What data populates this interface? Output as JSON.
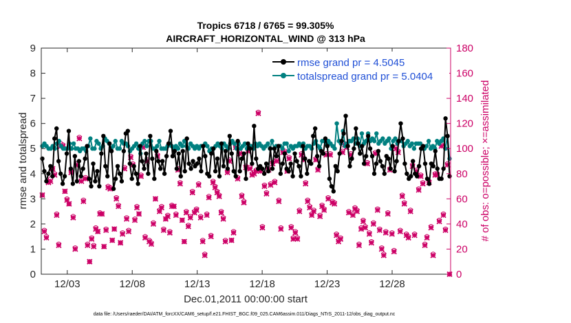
{
  "chart_data": {
    "type": "line",
    "title_line1": "Tropics 6718 / 6765 = 99.305%",
    "title_line2": "AIRCRAFT_HORIZONTAL_WIND @ 313 hPa",
    "xlabel": "Dec.01,2011 00:00:00 start",
    "ylabel": "rmse and totalspread",
    "ylabel_right": "# of obs: o=possible; ×=assimilated",
    "xlim": [
      1,
      32.5
    ],
    "ylim": [
      0,
      9
    ],
    "ylim_right": [
      0,
      180
    ],
    "x_ticks": [
      3,
      8,
      13,
      18,
      23,
      28
    ],
    "x_tick_labels": [
      "12/03",
      "12/08",
      "12/13",
      "12/18",
      "12/23",
      "12/28"
    ],
    "y_ticks": [
      0,
      1,
      2,
      3,
      4,
      5,
      6,
      7,
      8,
      9
    ],
    "y_tick_labels": [
      "0",
      "1",
      "2",
      "3",
      "4",
      "5",
      "6",
      "7",
      "8",
      "9"
    ],
    "y_ticks_right": [
      0,
      20,
      40,
      60,
      80,
      100,
      120,
      140,
      160,
      180
    ],
    "y_tick_labels_right": [
      "0",
      "20",
      "40",
      "60",
      "80",
      "100",
      "120",
      "140",
      "160",
      "180"
    ],
    "footnote": "data file: /Users/raeder/DAI/ATM_forcXX/CAM6_setup/f.e21.FHIST_BGC.f09_025.CAM6assim.011/Diags_NTrS_2011-12/obs_diag_output.nc",
    "series": [
      {
        "name": "rmse grand pr = 4.5045",
        "color": "#000000",
        "axis": "left",
        "values": [
          4.6,
          4.1,
          3.7,
          4.0,
          4.3,
          3.9,
          5.4,
          5.8,
          4.5,
          4.0,
          3.6,
          3.9,
          4.8,
          5.7,
          4.2,
          3.6,
          4.7,
          3.7,
          4.5,
          3.9,
          4.2,
          4.6,
          5.1,
          3.8,
          3.5,
          4.4,
          3.7,
          4.1,
          3.5,
          4.8,
          5.5,
          4.3,
          3.9,
          5.2,
          4.9,
          3.4,
          3.8,
          4.3,
          4.0,
          3.7,
          4.9,
          5.6,
          5.7,
          4.4,
          3.8,
          4.3,
          4.0,
          3.6,
          5.1,
          4.5,
          4.2,
          4.8,
          4.0,
          5.5,
          4.6,
          3.8,
          4.9,
          4.5,
          4.2,
          4.5,
          4.0,
          4.7,
          5.2,
          5.7,
          4.7,
          4.9,
          4.2,
          4.8,
          3.9,
          4.9,
          4.1,
          5.4,
          4.4,
          4.2,
          4.5,
          4.3,
          4.4,
          4.6,
          4.1,
          5.1,
          4.7,
          4.0,
          3.9,
          4.8,
          5.0,
          4.1,
          4.6,
          3.9,
          5.2,
          4.3,
          4.9,
          4.2,
          5.5,
          4.8,
          4.1,
          3.9,
          5.3,
          4.1,
          4.6,
          4.8,
          3.8,
          5.2,
          5.0,
          4.4,
          5.9,
          4.6,
          4.2,
          4.3,
          4.2,
          4.0,
          4.4,
          4.1,
          5.0,
          4.2,
          5.0,
          4.7,
          5.1,
          4.0,
          4.4,
          4.8,
          4.2,
          4.1,
          4.4,
          3.9,
          4.8,
          4.5,
          4.3,
          3.9,
          5.1,
          4.6,
          4.0,
          4.5,
          4.4,
          5.5,
          5.8,
          4.7,
          4.3,
          4.9,
          4.8,
          5.4,
          5.1,
          3.8,
          3.5,
          3.3,
          4.3,
          4.1,
          4.8,
          5.3,
          5.6,
          6.3,
          5.1,
          4.3,
          4.6,
          5.0,
          5.8,
          5.2,
          4.8,
          5.1,
          4.4,
          4.7,
          5.5,
          5.0,
          4.7,
          4.0,
          4.4,
          4.9,
          4.5,
          4.3,
          4.0,
          4.7,
          4.6,
          4.2,
          5.1,
          4.1,
          4.5,
          5.3,
          6.0,
          5.4,
          4.4,
          4.0,
          3.8,
          3.9,
          4.5,
          4.0,
          3.9,
          4.3,
          5.0,
          5.1,
          4.4,
          3.8,
          3.6,
          4.4,
          4.3,
          4.9,
          4.2,
          3.8,
          3.8,
          4.2,
          6.2,
          5.5,
          3.9
        ]
      },
      {
        "name": "totalspread grand pr = 5.0404",
        "color": "#008080",
        "axis": "left",
        "values": [
          5.1,
          5.2,
          5.1,
          5.0,
          5.0,
          5.1,
          5.0,
          5.2,
          5.3,
          5.1,
          5.0,
          5.0,
          5.0,
          5.2,
          5.0,
          5.2,
          5.0,
          5.0,
          4.9,
          5.0,
          5.0,
          4.9,
          5.1,
          5.4,
          5.0,
          5.0,
          5.3,
          5.2,
          5.0,
          5.1,
          5.4,
          5.3,
          5.2,
          5.0,
          5.1,
          5.3,
          5.0,
          5.0,
          5.3,
          5.2,
          5.2,
          5.1,
          4.9,
          5.0,
          5.1,
          5.2,
          5.0,
          4.8,
          5.2,
          5.3,
          5.1,
          5.3,
          5.3,
          5.0,
          5.0,
          5.1,
          5.3,
          5.0,
          5.0,
          5.0,
          5.1,
          5.2,
          5.1,
          5.0,
          5.1,
          5.0,
          5.2,
          5.1,
          5.3,
          5.1,
          5.0,
          5.2,
          5.1,
          5.0,
          5.1,
          5.0,
          5.1,
          5.1,
          5.2,
          5.1,
          4.9,
          5.0,
          5.0,
          5.1,
          5.2,
          5.1,
          5.0,
          5.2,
          5.1,
          5.0,
          5.2,
          5.3,
          5.2,
          5.0,
          5.2,
          5.0,
          5.1,
          5.2,
          5.0,
          5.1,
          5.1,
          5.0,
          5.2,
          5.1,
          5.2,
          5.1,
          5.0,
          5.1,
          5.2,
          5.0,
          5.3,
          5.0,
          5.1,
          5.1,
          5.1,
          5.0,
          5.2,
          5.2,
          4.9,
          5.1,
          5.0,
          5.1,
          5.1,
          5.2,
          5.1,
          5.2,
          5.0,
          5.1,
          5.1,
          5.0,
          5.2,
          5.3,
          5.1,
          5.0,
          5.3,
          5.3,
          5.2,
          5.3,
          5.2,
          5.1,
          5.0,
          6.0,
          5.3,
          5.2,
          5.7,
          5.1,
          5.2,
          5.3,
          5.3,
          5.4,
          5.2,
          5.4,
          5.1,
          5.6,
          5.2,
          5.3,
          5.6,
          5.3,
          5.4,
          5.3,
          5.6,
          5.2,
          5.3,
          5.4,
          5.2,
          5.3,
          5.4,
          5.0,
          5.3,
          5.4,
          5.2,
          5.3,
          5.3,
          5.1,
          5.2,
          5.3,
          5.1,
          5.2,
          5.0,
          5.2,
          5.2,
          5.2,
          5.0,
          5.0,
          5.1,
          5.3,
          5.0,
          5.1,
          5.0,
          5.3,
          5.2,
          5.3,
          5.4,
          5.0,
          5.5,
          4.6
        ]
      },
      {
        "name": "obs possible",
        "color": "#cc0066",
        "axis": "right",
        "values": [
          63,
          35,
          30,
          74,
          76,
          84,
          80,
          48,
          24,
          104,
          103,
          66,
          60,
          56,
          82,
          46,
          21,
          88,
          109,
          75,
          59,
          77,
          24,
          10,
          29,
          23,
          37,
          34,
          49,
          48,
          22,
          36,
          70,
          69,
          27,
          36,
          61,
          55,
          25,
          33,
          85,
          45,
          35,
          94,
          88,
          44,
          54,
          48,
          79,
          102,
          30,
          91,
          27,
          25,
          41,
          60,
          95,
          51,
          54,
          36,
          44,
          47,
          34,
          55,
          54,
          48,
          84,
          73,
          43,
          26,
          50,
          39,
          46,
          66,
          50,
          52,
          72,
          46,
          27,
          16,
          48,
          62,
          31,
          74,
          70,
          66,
          63,
          50,
          45,
          27,
          82,
          91,
          27,
          34,
          102,
          77,
          97,
          63,
          58,
          86,
          99,
          85,
          80,
          81,
          83,
          129,
          83,
          38,
          71,
          65,
          84,
          72,
          89,
          74,
          91,
          59,
          37,
          98,
          98,
          83,
          93,
          38,
          29,
          34,
          29,
          51,
          96,
          92,
          73,
          59,
          54,
          48,
          51,
          92,
          84,
          47,
          55,
          52,
          96,
          61,
          96,
          58,
          57,
          32,
          27,
          29,
          98,
          104,
          102,
          50,
          96,
          48,
          53,
          51,
          24,
          37,
          43,
          38,
          89,
          33,
          26,
          41,
          97,
          52,
          36,
          21,
          16,
          34,
          49,
          84,
          33,
          19,
          101,
          98,
          35,
          63,
          57,
          32,
          30,
          51,
          87,
          32,
          83,
          68,
          79,
          73,
          24,
          30,
          74,
          38,
          16,
          80,
          80,
          43,
          103,
          48,
          36,
          88,
          0
        ]
      },
      {
        "name": "obs assimilated",
        "color": "#cc0066",
        "axis": "right",
        "values": [
          63,
          34,
          29,
          73,
          74,
          84,
          79,
          47,
          23,
          102,
          102,
          66,
          59,
          56,
          81,
          45,
          20,
          87,
          108,
          74,
          58,
          76,
          23,
          10,
          28,
          22,
          36,
          34,
          48,
          48,
          22,
          35,
          69,
          68,
          27,
          36,
          60,
          54,
          25,
          32,
          84,
          44,
          34,
          93,
          87,
          43,
          53,
          48,
          78,
          101,
          29,
          90,
          26,
          24,
          40,
          60,
          94,
          50,
          53,
          35,
          44,
          46,
          33,
          54,
          54,
          47,
          83,
          72,
          43,
          26,
          49,
          38,
          45,
          65,
          49,
          51,
          71,
          45,
          26,
          15,
          47,
          61,
          30,
          73,
          69,
          65,
          62,
          49,
          44,
          26,
          81,
          90,
          27,
          33,
          101,
          76,
          96,
          62,
          57,
          85,
          98,
          84,
          79,
          80,
          82,
          128,
          82,
          37,
          70,
          64,
          83,
          71,
          88,
          73,
          90,
          58,
          36,
          97,
          97,
          82,
          92,
          37,
          28,
          33,
          28,
          50,
          95,
          91,
          72,
          58,
          53,
          47,
          50,
          91,
          83,
          46,
          54,
          51,
          95,
          60,
          95,
          57,
          56,
          31,
          26,
          28,
          97,
          103,
          101,
          49,
          95,
          47,
          52,
          50,
          23,
          36,
          42,
          37,
          88,
          32,
          25,
          40,
          96,
          51,
          35,
          20,
          15,
          33,
          48,
          83,
          32,
          18,
          100,
          97,
          34,
          62,
          56,
          31,
          29,
          50,
          86,
          31,
          82,
          67,
          78,
          72,
          23,
          29,
          73,
          37,
          15,
          79,
          79,
          42,
          102,
          47,
          35,
          87,
          0
        ]
      }
    ]
  }
}
